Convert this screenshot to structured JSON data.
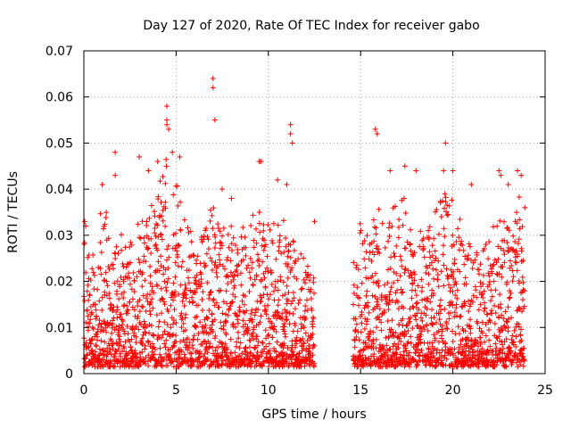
{
  "chart_data": {
    "type": "scatter",
    "title": "Day 127 of 2020, Rate Of TEC Index for receiver gabo",
    "xlabel": "GPS time / hours",
    "ylabel": "ROTI / TECUs",
    "xlim": [
      0,
      25
    ],
    "ylim": [
      0,
      0.07
    ],
    "xticks": [
      "0",
      "5",
      "10",
      "15",
      "20",
      "25"
    ],
    "yticks": [
      "0",
      "0.01",
      "0.02",
      "0.03",
      "0.04",
      "0.05",
      "0.06",
      "0.07"
    ],
    "grid": true,
    "marker": "+",
    "color": "#ff0000",
    "envelope": [
      [
        0.0,
        0.03
      ],
      [
        0.5,
        0.028
      ],
      [
        1.0,
        0.038
      ],
      [
        1.5,
        0.03
      ],
      [
        2.0,
        0.03
      ],
      [
        2.5,
        0.028
      ],
      [
        3.0,
        0.036
      ],
      [
        3.5,
        0.036
      ],
      [
        4.0,
        0.04
      ],
      [
        4.5,
        0.046
      ],
      [
        5.0,
        0.042
      ],
      [
        5.5,
        0.034
      ],
      [
        6.0,
        0.03
      ],
      [
        6.5,
        0.032
      ],
      [
        7.0,
        0.036
      ],
      [
        7.5,
        0.032
      ],
      [
        8.0,
        0.033
      ],
      [
        8.5,
        0.03
      ],
      [
        9.0,
        0.034
      ],
      [
        9.5,
        0.036
      ],
      [
        10.0,
        0.032
      ],
      [
        10.5,
        0.036
      ],
      [
        11.0,
        0.034
      ],
      [
        11.5,
        0.028
      ],
      [
        12.0,
        0.025
      ],
      [
        12.5,
        0.02
      ],
      [
        14.6,
        0.025
      ],
      [
        15.0,
        0.034
      ],
      [
        15.5,
        0.03
      ],
      [
        16.0,
        0.038
      ],
      [
        16.5,
        0.036
      ],
      [
        17.0,
        0.041
      ],
      [
        17.5,
        0.037
      ],
      [
        18.0,
        0.03
      ],
      [
        18.5,
        0.03
      ],
      [
        19.0,
        0.036
      ],
      [
        19.5,
        0.04
      ],
      [
        20.0,
        0.038
      ],
      [
        20.5,
        0.032
      ],
      [
        21.0,
        0.03
      ],
      [
        21.5,
        0.026
      ],
      [
        22.0,
        0.03
      ],
      [
        22.5,
        0.034
      ],
      [
        23.0,
        0.036
      ],
      [
        23.5,
        0.04
      ],
      [
        23.9,
        0.034
      ]
    ],
    "outliers": [
      [
        0.05,
        0.033
      ],
      [
        0.1,
        0.032
      ],
      [
        1.0,
        0.041
      ],
      [
        1.7,
        0.048
      ],
      [
        1.7,
        0.043
      ],
      [
        3.0,
        0.047
      ],
      [
        3.5,
        0.044
      ],
      [
        4.0,
        0.046
      ],
      [
        4.5,
        0.058
      ],
      [
        4.5,
        0.055
      ],
      [
        4.5,
        0.054
      ],
      [
        4.6,
        0.053
      ],
      [
        4.8,
        0.048
      ],
      [
        5.2,
        0.047
      ],
      [
        7.0,
        0.064
      ],
      [
        7.0,
        0.062
      ],
      [
        7.1,
        0.055
      ],
      [
        7.5,
        0.04
      ],
      [
        8.0,
        0.038
      ],
      [
        9.5,
        0.046
      ],
      [
        9.6,
        0.046
      ],
      [
        10.5,
        0.042
      ],
      [
        11.2,
        0.054
      ],
      [
        11.2,
        0.052
      ],
      [
        11.3,
        0.05
      ],
      [
        11.0,
        0.041
      ],
      [
        12.5,
        0.033
      ],
      [
        15.8,
        0.053
      ],
      [
        15.9,
        0.052
      ],
      [
        16.6,
        0.044
      ],
      [
        17.4,
        0.045
      ],
      [
        18.0,
        0.044
      ],
      [
        19.6,
        0.05
      ],
      [
        19.5,
        0.044
      ],
      [
        20.0,
        0.044
      ],
      [
        21.0,
        0.041
      ],
      [
        22.5,
        0.044
      ],
      [
        22.6,
        0.043
      ],
      [
        23.0,
        0.041
      ],
      [
        23.5,
        0.044
      ],
      [
        23.7,
        0.043
      ],
      [
        23.9,
        0.036
      ]
    ]
  }
}
